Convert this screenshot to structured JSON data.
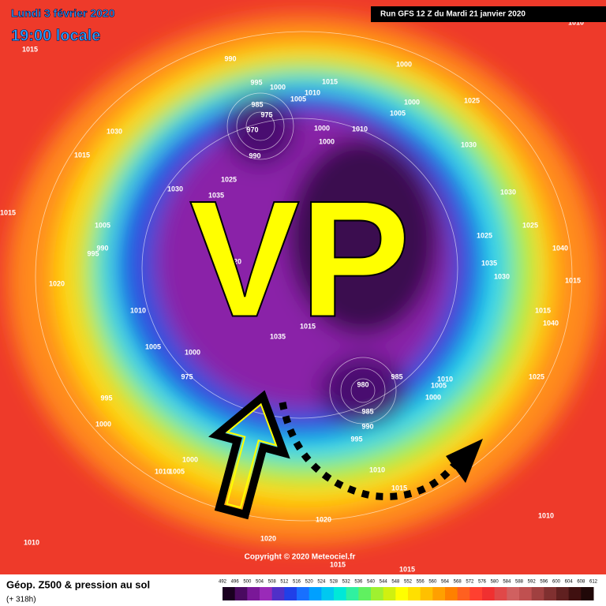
{
  "header": {
    "date": "Lundi 3 février 2020",
    "time": "19:00 locale",
    "run": "Run GFS 12 Z du Mardi 21 janvier 2020"
  },
  "map": {
    "annotation": "VP",
    "isobar_labels": [
      1015,
      990,
      1000,
      995,
      1000,
      1015,
      1005,
      1010,
      1000,
      1025,
      985,
      975,
      970,
      1000,
      1010,
      1005,
      1030,
      1000,
      1030,
      990,
      1015,
      1025,
      1030,
      1035,
      1030,
      1015,
      1025,
      1005,
      990,
      995,
      1025,
      1040,
      1020,
      1035,
      1030,
      1020,
      1015,
      1010,
      1015,
      1040,
      1005,
      1015,
      1035,
      1000,
      980,
      985,
      1010,
      1025,
      1005,
      975,
      995,
      1000,
      985,
      990,
      995,
      1000,
      1000,
      1010,
      1005,
      1010,
      1015,
      1020,
      1010,
      1010,
      1020,
      1015,
      1015,
      1010
    ],
    "copyright": "Copyright © 2020 Meteociel.fr"
  },
  "legend": {
    "title": "Géop. Z500 & pression au sol",
    "lead_time": "(+ 318h)",
    "scale": [
      492,
      496,
      500,
      504,
      508,
      512,
      516,
      520,
      524,
      528,
      532,
      536,
      540,
      544,
      548,
      552,
      556,
      560,
      564,
      568,
      572,
      576,
      580,
      584,
      588,
      592,
      596,
      600,
      604,
      608,
      612
    ]
  }
}
